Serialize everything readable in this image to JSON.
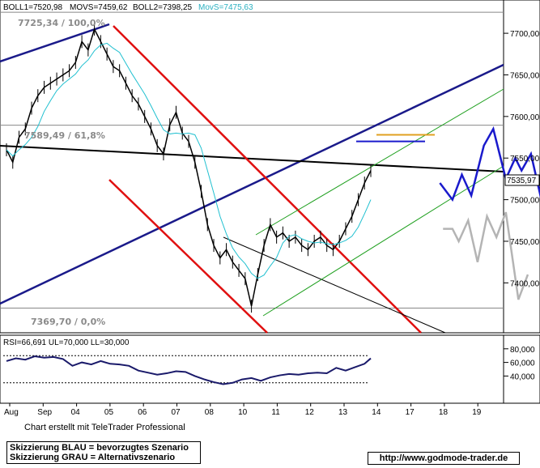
{
  "chart_data": [
    {
      "type": "line",
      "header": {
        "boll1": "BOLL1=7520,98",
        "movs": "MOVS=7459,62",
        "boll2": "BOLL2=7398,25",
        "movs_short": "MovS=7475,63"
      },
      "ylim": [
        7340,
        7740
      ],
      "y_ticks": [
        "7700,00",
        "7650,00",
        "7600,00",
        "7550,00",
        "7500,00",
        "7450,00",
        "7400,00"
      ],
      "last_price": "7535,97",
      "x_tick_labels": [
        "Aug",
        "Sep",
        "04",
        "05",
        "06",
        "07",
        "08",
        "10",
        "11",
        "12",
        "13",
        "14",
        "17",
        "18",
        "19"
      ],
      "fib_levels": [
        {
          "label": "7725,34 / 100,0%",
          "value": 7725.34
        },
        {
          "label": "7589,49 / 61,8%",
          "value": 7589.49
        },
        {
          "label": "7369,70 / 0,0%",
          "value": 7369.7
        }
      ],
      "scenarios": [
        {
          "name": "blau",
          "color": "#1a1acc",
          "points": [
            [
              13.8,
              7520
            ],
            [
              14.2,
              7500
            ],
            [
              14.5,
              7530
            ],
            [
              14.8,
              7505
            ],
            [
              15.2,
              7565
            ],
            [
              15.5,
              7585
            ],
            [
              15.9,
              7525
            ],
            [
              16.2,
              7550
            ],
            [
              16.4,
              7535
            ],
            [
              16.7,
              7555
            ],
            [
              17.3,
              7455
            ]
          ]
        },
        {
          "name": "grau",
          "color": "#b4b4b4",
          "points": [
            [
              13.9,
              7465
            ],
            [
              14.2,
              7465
            ],
            [
              14.4,
              7450
            ],
            [
              14.7,
              7475
            ],
            [
              15.0,
              7425
            ],
            [
              15.3,
              7480
            ],
            [
              15.6,
              7455
            ],
            [
              15.9,
              7485
            ],
            [
              16.3,
              7380
            ],
            [
              16.6,
              7410
            ]
          ]
        }
      ],
      "price_series": [
        [
          0.0,
          7560
        ],
        [
          0.2,
          7545
        ],
        [
          0.4,
          7575
        ],
        [
          0.6,
          7585
        ],
        [
          0.8,
          7610
        ],
        [
          1.0,
          7625
        ],
        [
          1.2,
          7635
        ],
        [
          1.4,
          7640
        ],
        [
          1.6,
          7645
        ],
        [
          1.8,
          7650
        ],
        [
          2.0,
          7655
        ],
        [
          2.2,
          7665
        ],
        [
          2.4,
          7690
        ],
        [
          2.6,
          7680
        ],
        [
          2.8,
          7705
        ],
        [
          3.0,
          7690
        ],
        [
          3.2,
          7675
        ],
        [
          3.4,
          7660
        ],
        [
          3.6,
          7655
        ],
        [
          3.8,
          7640
        ],
        [
          4.0,
          7625
        ],
        [
          4.2,
          7615
        ],
        [
          4.4,
          7600
        ],
        [
          4.6,
          7585
        ],
        [
          4.8,
          7565
        ],
        [
          5.0,
          7555
        ],
        [
          5.2,
          7590
        ],
        [
          5.4,
          7605
        ],
        [
          5.6,
          7580
        ],
        [
          5.8,
          7570
        ],
        [
          6.0,
          7545
        ],
        [
          6.2,
          7510
        ],
        [
          6.4,
          7470
        ],
        [
          6.6,
          7445
        ],
        [
          6.8,
          7430
        ],
        [
          7.0,
          7440
        ],
        [
          7.2,
          7425
        ],
        [
          7.4,
          7415
        ],
        [
          7.6,
          7405
        ],
        [
          7.8,
          7372
        ],
        [
          8.0,
          7410
        ],
        [
          8.2,
          7445
        ],
        [
          8.4,
          7470
        ],
        [
          8.6,
          7455
        ],
        [
          8.8,
          7460
        ],
        [
          9.0,
          7450
        ],
        [
          9.2,
          7455
        ],
        [
          9.4,
          7445
        ],
        [
          9.6,
          7440
        ],
        [
          9.8,
          7450
        ],
        [
          10.0,
          7455
        ],
        [
          10.2,
          7445
        ],
        [
          10.4,
          7440
        ],
        [
          10.6,
          7450
        ],
        [
          10.8,
          7465
        ],
        [
          11.0,
          7480
        ],
        [
          11.2,
          7500
        ],
        [
          11.4,
          7520
        ],
        [
          11.6,
          7535
        ]
      ],
      "rsi": {
        "label": "RSI=66,691 UL=70,000 LL=30,000",
        "ylim": [
          0,
          100
        ],
        "y_ticks": [
          "80,000",
          "60,000",
          "40,000"
        ],
        "ul": 70,
        "ll": 30,
        "values": [
          [
            0.0,
            62
          ],
          [
            0.3,
            66
          ],
          [
            0.6,
            64
          ],
          [
            0.9,
            69
          ],
          [
            1.2,
            67
          ],
          [
            1.5,
            68
          ],
          [
            1.8,
            65
          ],
          [
            2.1,
            55
          ],
          [
            2.4,
            60
          ],
          [
            2.7,
            57
          ],
          [
            3.0,
            62
          ],
          [
            3.3,
            58
          ],
          [
            3.6,
            57
          ],
          [
            3.9,
            55
          ],
          [
            4.2,
            48
          ],
          [
            4.5,
            45
          ],
          [
            4.8,
            42
          ],
          [
            5.1,
            44
          ],
          [
            5.4,
            47
          ],
          [
            5.7,
            46
          ],
          [
            6.0,
            40
          ],
          [
            6.3,
            35
          ],
          [
            6.6,
            31
          ],
          [
            6.9,
            28
          ],
          [
            7.2,
            30
          ],
          [
            7.5,
            35
          ],
          [
            7.8,
            37
          ],
          [
            8.1,
            33
          ],
          [
            8.4,
            38
          ],
          [
            8.7,
            41
          ],
          [
            9.0,
            43
          ],
          [
            9.3,
            42
          ],
          [
            9.6,
            44
          ],
          [
            9.9,
            45
          ],
          [
            10.2,
            44
          ],
          [
            10.5,
            52
          ],
          [
            10.8,
            48
          ],
          [
            11.1,
            53
          ],
          [
            11.4,
            58
          ],
          [
            11.6,
            66
          ]
        ]
      }
    }
  ],
  "footer": {
    "credit": "Chart erstellt mit TeleTrader Professional",
    "legend_blue": "Skizzierung BLAU = bevorzugtes Szenario",
    "legend_grey": "Skizzierung GRAU = Alternativszenario",
    "url": "http://www.godmode-trader.de"
  }
}
